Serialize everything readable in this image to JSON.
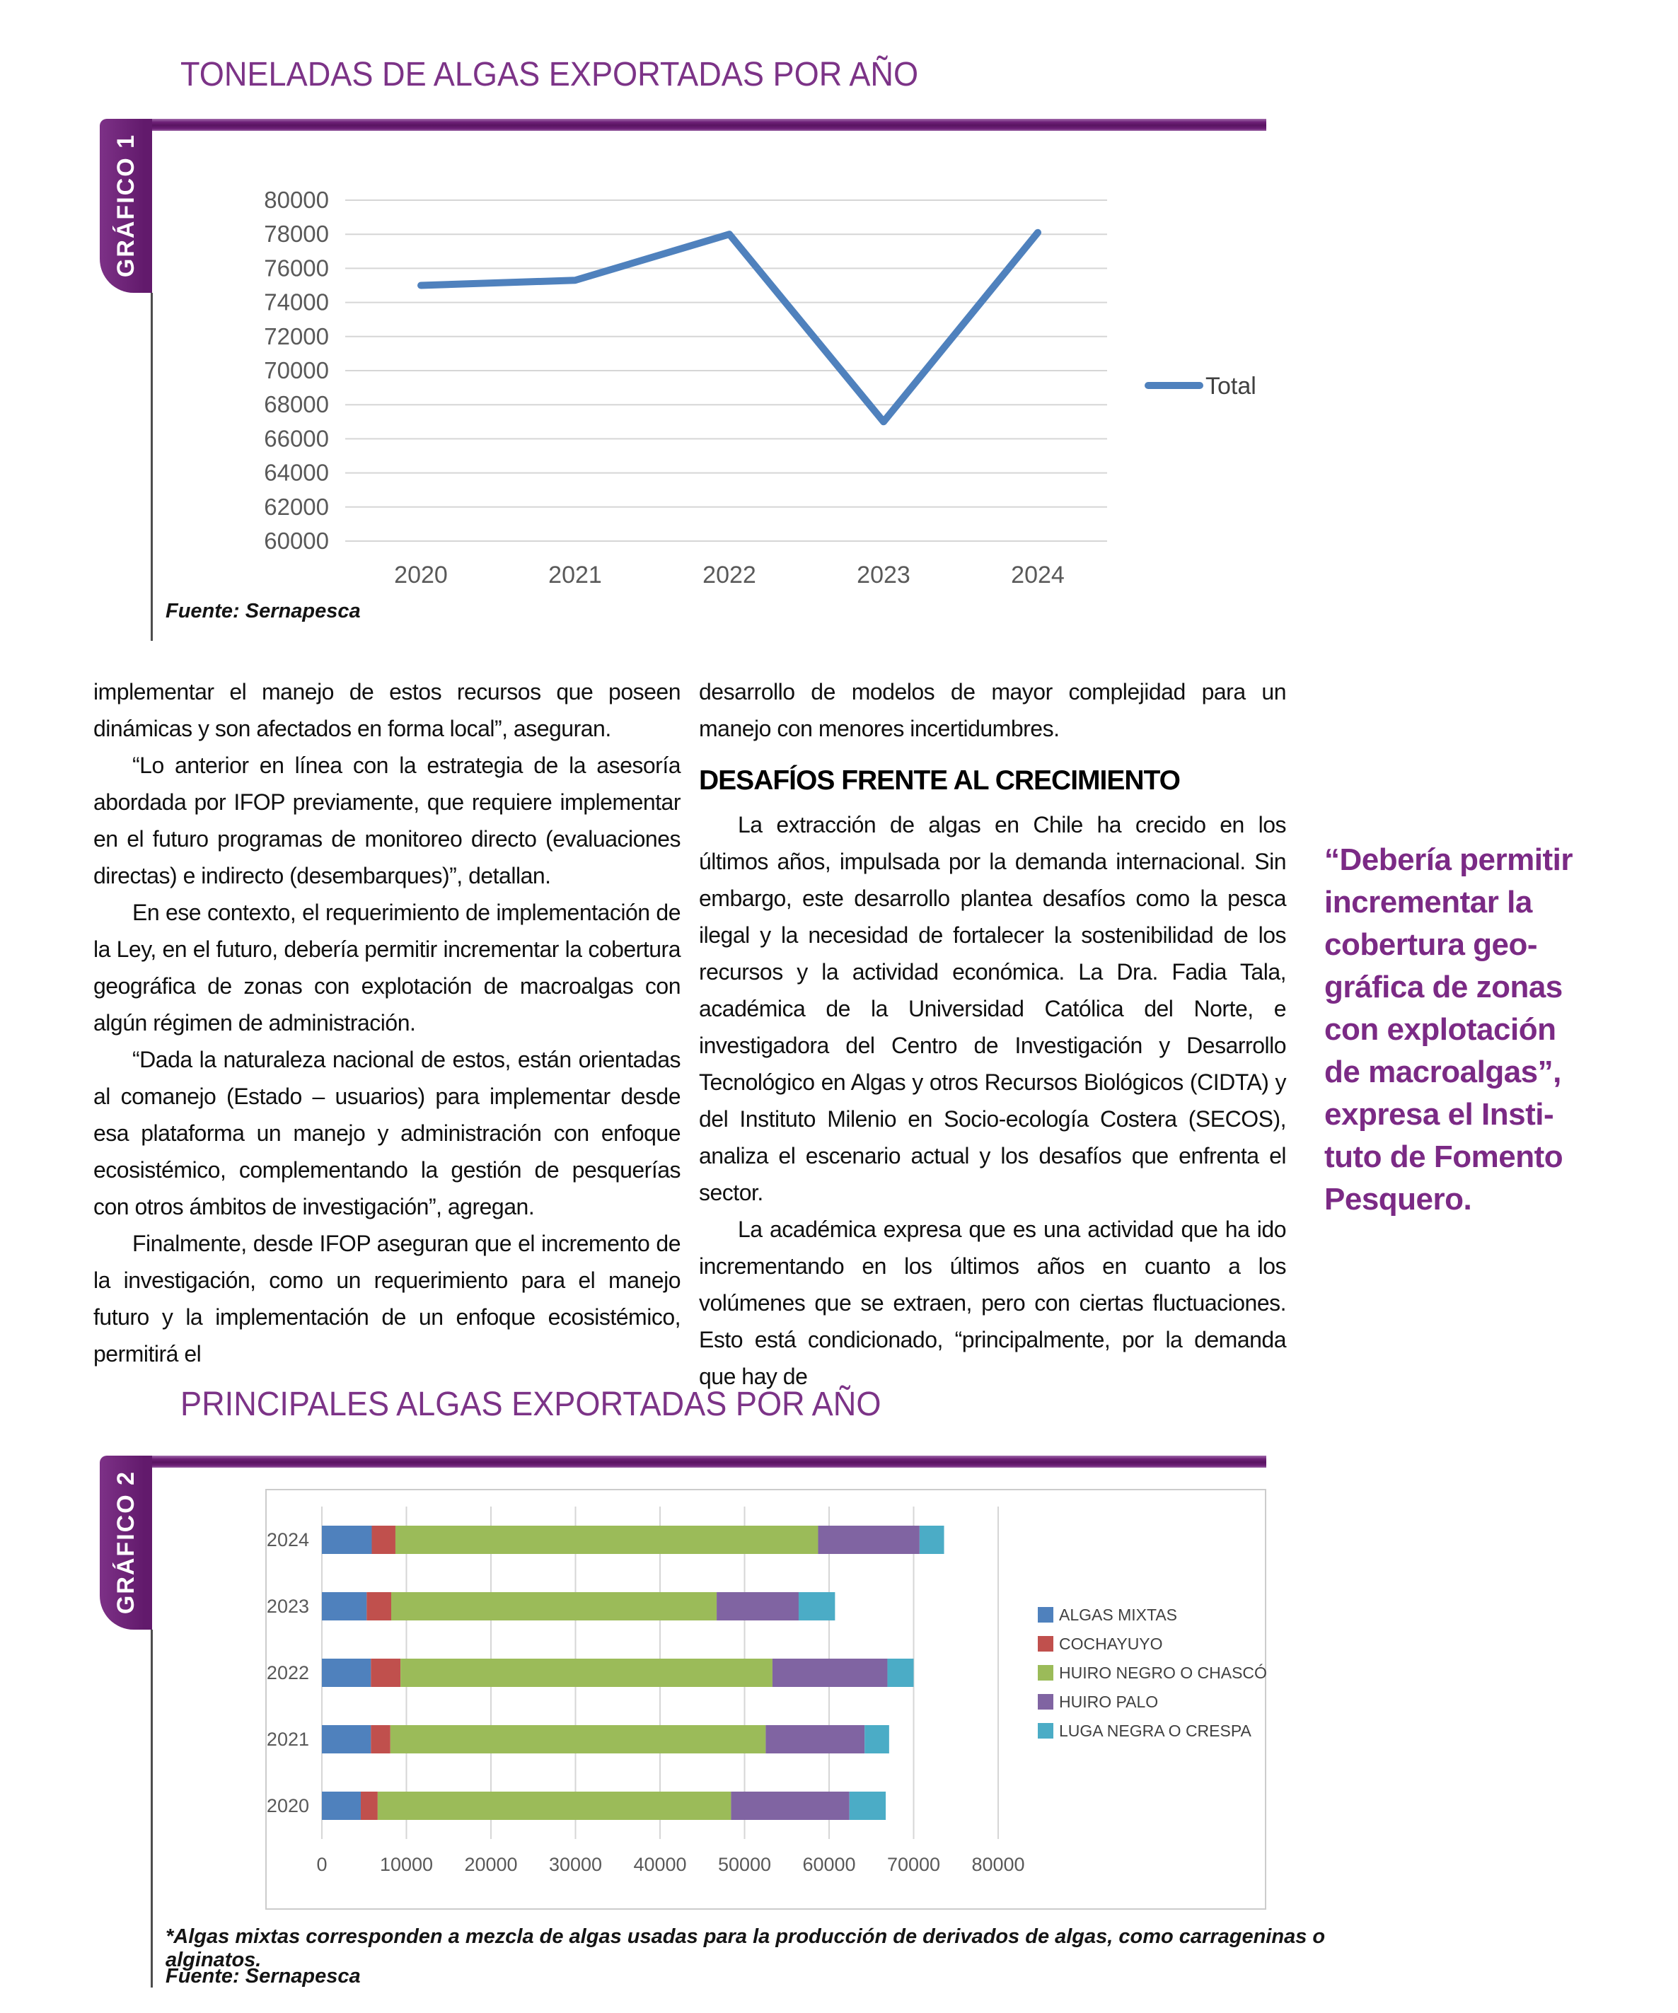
{
  "page": {
    "grafico1_label": "GRÁFICO 1",
    "grafico2_label": "GRÁFICO 2",
    "footnote": "*Algas mixtas corresponden a mezcla de algas usadas para la producción de derivados de algas, como carrageninas o alginatos.",
    "accent_purple": "#7c3387",
    "band_purple": "#6d2077"
  },
  "article": {
    "left_column": {
      "paragraphs": [
        {
          "indent": false,
          "text": "implementar el manejo de estos recursos que poseen dinámicas y son afectados en forma local”, aseguran."
        },
        {
          "indent": true,
          "text": "“Lo anterior en línea con la estrategia de la asesoría abordada por IFOP previamente, que requiere implementar en el futuro programas de monitoreo directo (evaluaciones directas) e indirecto (desembarques)”, detallan."
        },
        {
          "indent": true,
          "text": "En ese contexto, el requerimiento de implementación de la Ley, en el futuro, debería permitir incrementar la cobertura geográfica de zonas con explotación de macroalgas con algún régimen de administración."
        },
        {
          "indent": true,
          "text": "“Dada la naturaleza nacional de estos, están orientadas al comanejo (Estado – usuarios) para implementar desde esa plataforma un manejo y administración con enfoque ecosistémico, complementando la gestión de pesquerías con otros ámbitos de investigación”, agregan."
        },
        {
          "indent": true,
          "text": "Finalmente, desde IFOP aseguran que el incremento de la investigación, como un requerimiento para el manejo futuro y la implementación de un enfoque ecosistémico, permitirá el"
        }
      ]
    },
    "right_column": {
      "paragraphs_before_heading": [
        {
          "indent": false,
          "text": "desarrollo de modelos de mayor complejidad para un manejo con menores incertidumbres."
        }
      ],
      "heading": "DESAFÍOS FRENTE AL CRECIMIENTO",
      "paragraphs_after_heading": [
        {
          "indent": true,
          "text": "La extracción de algas en Chile ha crecido en los últimos años, impulsada por la demanda internacional. Sin embargo, este desarrollo plantea desafíos como la pesca ilegal y la necesidad de fortalecer la sostenibilidad de los recursos y la actividad económica. La Dra. Fadia Tala, académica de la Universidad Católica del Norte, e investigadora del Centro de Investigación y Desarrollo Tecnológico en Algas y otros Recursos Biológicos (CIDTA) y del Instituto Milenio en Socio-ecología Costera (SECOS), analiza el escenario actual y los desafíos que enfrenta el sector."
        },
        {
          "indent": true,
          "text": "La académica expresa que es una actividad que ha ido incrementando en los últimos años en cuanto a los volúmenes que se extraen, pero con ciertas fluctuaciones. Esto está condicionado, “principalmente, por la demanda que hay de"
        }
      ]
    },
    "pull_quote": {
      "lines": [
        "“Debería permitir",
        "incrementar la",
        "cobertura geo-",
        "gráfica de zonas",
        "con explotación",
        "de macroalgas”,",
        "expresa el Insti-",
        "tuto de Fomento",
        "Pesquero."
      ],
      "color": "#7b2a85"
    }
  },
  "chart_data": [
    {
      "type": "line",
      "title": "TONELADAS DE ALGAS EXPORTADAS POR AÑO",
      "categories": [
        "2020",
        "2021",
        "2022",
        "2023",
        "2024"
      ],
      "series": [
        {
          "name": "Total",
          "color": "#4f81bd",
          "values": [
            75000,
            75300,
            78000,
            67000,
            78100
          ]
        }
      ],
      "ylim": [
        60000,
        80000
      ],
      "ytick": 2000,
      "grid": true,
      "legend_position": "right",
      "source": "Fuente: Sernapesca"
    },
    {
      "type": "bar",
      "orientation": "horizontal",
      "stacked": true,
      "title": "PRINCIPALES ALGAS EXPORTADAS POR AÑO",
      "categories": [
        "2024",
        "2023",
        "2022",
        "2021",
        "2020"
      ],
      "series": [
        {
          "name": "ALGAS MIXTAS",
          "color": "#4f81bd",
          "values": [
            5900,
            5300,
            5800,
            5800,
            4600
          ]
        },
        {
          "name": "COCHAYUYO",
          "color": "#c0504d",
          "values": [
            2800,
            2900,
            3500,
            2300,
            2000
          ]
        },
        {
          "name": "HUIRO NEGRO O CHASCÓN",
          "color": "#9bbb59",
          "values": [
            50000,
            38500,
            44000,
            44400,
            41800
          ]
        },
        {
          "name": "HUIRO PALO",
          "color": "#8064a2",
          "values": [
            12000,
            9700,
            13600,
            11700,
            14000
          ]
        },
        {
          "name": "LUGA NEGRA O CRESPA",
          "color": "#4bacc6",
          "values": [
            2900,
            4300,
            3100,
            2900,
            4300
          ]
        }
      ],
      "xlim": [
        0,
        80000
      ],
      "xtick": 10000,
      "grid": true,
      "legend_position": "right",
      "source": "Fuente: Sernapesca"
    }
  ]
}
